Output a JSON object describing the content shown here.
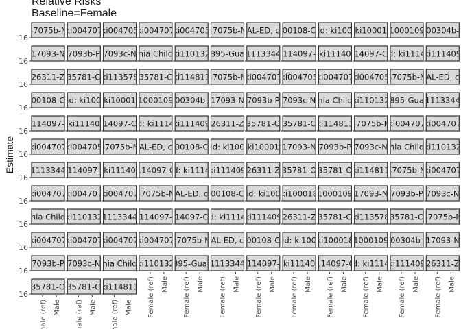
{
  "chart_data": {
    "type": "bar",
    "title": "Relative Risks",
    "subtitle": "Baseline=Female",
    "ylabel": "Estimate",
    "xlabel": "",
    "categories": [
      "Female (ref)",
      "Male"
    ],
    "y_tick_label": "16",
    "panels": [
      "47075b-M",
      "ki004707",
      "ki004705",
      "ki004707",
      "ki004705",
      "47075b-M",
      "AL-ED, c",
      "00108-C",
      "id: ki100",
      "ki10001",
      "1000109",
      "00304b-",
      "17093-N",
      "7093b-P",
      "7093c-N",
      "nia Child",
      "ki110132",
      "895-Gua",
      "1113344",
      "114097-",
      "ki11140",
      "14097-C",
      "d: ki1114",
      "ki111409",
      "26311-Z",
      "35781-O",
      "ki113578",
      "35781-C",
      "ki114811",
      "47075b-M",
      "ki004707",
      "ki004705",
      "ki004707",
      "ki004705",
      "47075b-M",
      "AL-ED, c",
      "00108-C",
      "id: ki100",
      "ki10001",
      "1000109",
      "00304b-",
      "17093-N",
      "7093b-P",
      "7093c-N",
      "nia Child",
      "ki110132",
      "895-Gua",
      "1113344",
      "114097-",
      "ki11140",
      "14097-C",
      "d: ki1114",
      "ki111409",
      "26311-Z",
      "35781-O",
      "35781-C",
      "ki114811",
      "47075b-M",
      "ki004707",
      "ki004707",
      "ki004707",
      "ki004705",
      "47075b-M",
      "AL-ED, c",
      "00108-C",
      "id: ki100",
      "ki10001",
      "17093-N",
      "7093b-P",
      "7093c-N",
      "nia Child",
      "ki110132",
      "1113344",
      "114097-",
      "ki11140",
      "114097-C",
      "d: ki1114",
      "ki111409",
      "26311-Z",
      "35781-O",
      "35781-O",
      "ki114811",
      "47075b-M",
      "ki004707",
      "ki004707",
      "ki004707",
      "ki004707",
      "47075b-M",
      "AL-ED, c",
      "00108-C",
      "id: ki100",
      "ki100018",
      "1000109",
      "17093-N",
      "7093b-P",
      "7093c-N",
      "nia Child",
      "ki110132",
      "1113344",
      "114097-",
      "14097-C",
      "d: ki1114",
      "ki111409",
      "26311-Z",
      "35781-O",
      "ki113578",
      "35781-O",
      "47075b-M",
      "ki004707",
      "ki004707",
      "ki004707",
      "ki004707",
      "47075b-M",
      "AL-ED, c",
      "00108-C",
      "id: ki100",
      "ki100018",
      "1000109",
      "00304b-",
      "17093-N",
      "7093b-P",
      "7093c-N",
      "nia Child",
      "ki110132",
      "895-Guat",
      "1113344",
      "114097-",
      "ki11140",
      "114097-C",
      "d: ki1114",
      "ki111409",
      "26311-Z",
      "35781-O",
      "35781-O",
      "ki114811"
    ]
  }
}
